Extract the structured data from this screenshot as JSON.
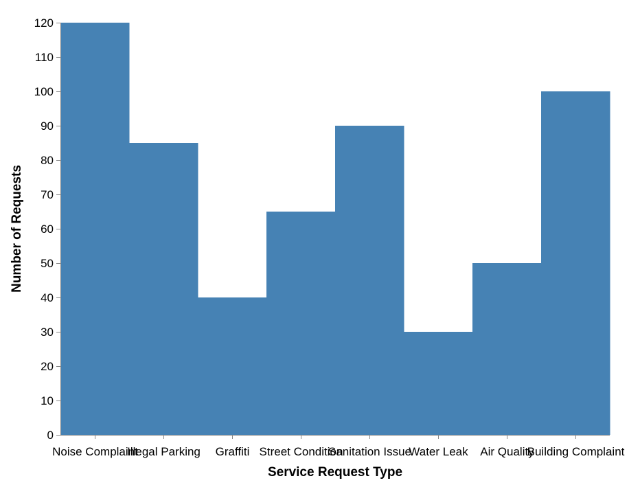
{
  "chart_data": {
    "type": "area",
    "interpolation": "step",
    "categories": [
      "Noise Complaint",
      "Illegal Parking",
      "Graffiti",
      "Street Condition",
      "Sanitation Issue",
      "Water Leak",
      "Air Quality",
      "Building Complaint"
    ],
    "values": [
      120,
      85,
      40,
      65,
      90,
      30,
      50,
      100
    ],
    "title": "",
    "xlabel": "Service Request Type",
    "ylabel": "Number of Requests",
    "ylim": [
      0,
      120
    ],
    "yticks": [
      0,
      10,
      20,
      30,
      40,
      50,
      60,
      70,
      80,
      90,
      100,
      110,
      120
    ],
    "grid": false,
    "legend": "none",
    "colors": {
      "fill": "#4682b4",
      "axis": "#888888",
      "text": "#000000"
    }
  }
}
